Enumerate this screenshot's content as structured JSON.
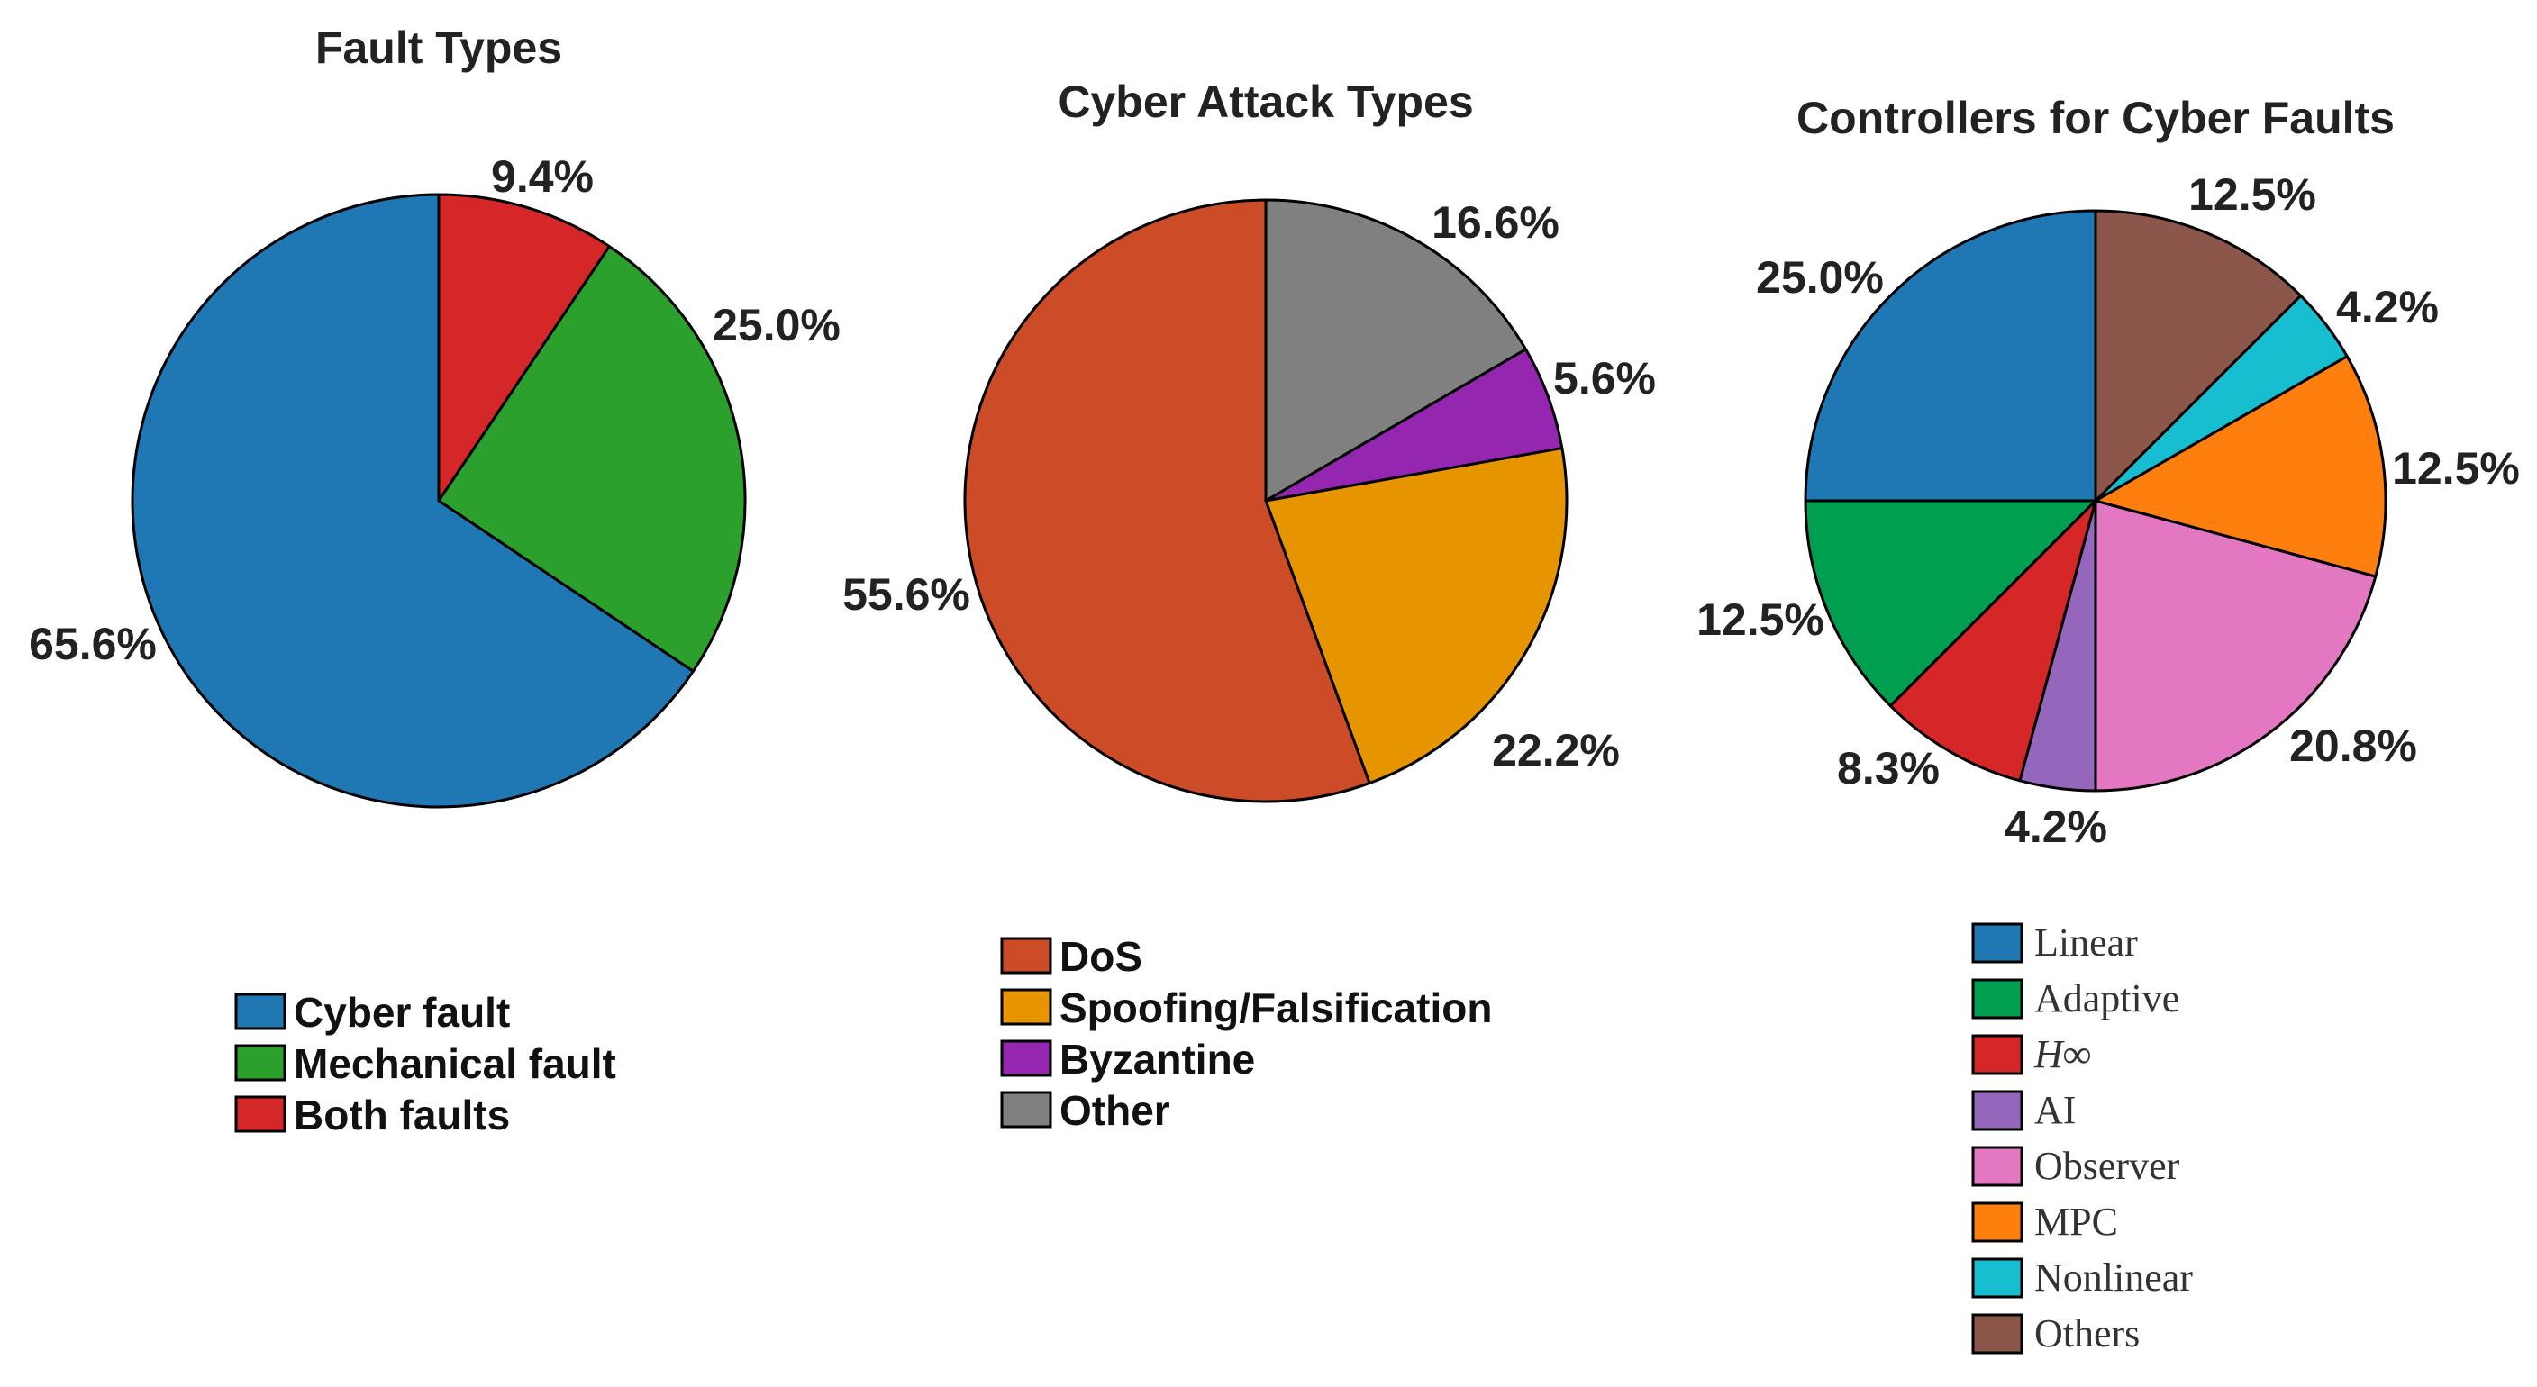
{
  "chart_data": [
    {
      "type": "pie",
      "title": "Fault Types",
      "slices": [
        {
          "label": "Cyber fault",
          "value": 65.6,
          "value_label": "65.6%",
          "color": "#1f77b4"
        },
        {
          "label": "Mechanical fault",
          "value": 25.0,
          "value_label": "25.0%",
          "color": "#2ca02c"
        },
        {
          "label": "Both faults",
          "value": 9.4,
          "value_label": "9.4%",
          "color": "#d62728"
        }
      ],
      "start": "top",
      "direction": "clockwise, last slice first",
      "legend_position": "below"
    },
    {
      "type": "pie",
      "title": "Cyber Attack Types",
      "slices": [
        {
          "label": "DoS",
          "value": 55.6,
          "value_label": "55.6%",
          "color": "#cc4c27"
        },
        {
          "label": "Spoofing/Falsification",
          "value": 22.2,
          "value_label": "22.2%",
          "color": "#e69500"
        },
        {
          "label": "Byzantine",
          "value": 5.6,
          "value_label": "5.6%",
          "color": "#9526b0"
        },
        {
          "label": "Other",
          "value": 16.6,
          "value_label": "16.6%",
          "color": "#808080"
        }
      ],
      "start": "top",
      "direction": "clockwise, last slice first",
      "legend_position": "below"
    },
    {
      "type": "pie",
      "title": "Controllers for Cyber Faults",
      "slices": [
        {
          "label": "Linear",
          "value": 25.0,
          "value_label": "25.0%",
          "color": "#1f77b4"
        },
        {
          "label": "Adaptive",
          "value": 12.5,
          "value_label": "12.5%",
          "color": "#009e4f"
        },
        {
          "label": "H∞",
          "value": 8.3,
          "value_label": "8.3%",
          "color": "#d62728"
        },
        {
          "label": "AI",
          "value": 4.2,
          "value_label": "4.2%",
          "color": "#9467bd"
        },
        {
          "label": "Observer",
          "value": 20.8,
          "value_label": "20.8%",
          "color": "#e377c2"
        },
        {
          "label": "MPC",
          "value": 12.5,
          "value_label": "12.5%",
          "color": "#ff7f0e"
        },
        {
          "label": "Nonlinear",
          "value": 4.2,
          "value_label": "4.2%",
          "color": "#17becf"
        },
        {
          "label": "Others",
          "value": 12.5,
          "value_label": "12.5%",
          "color": "#8c564b"
        }
      ],
      "start": "top",
      "direction": "counter-clockwise",
      "legend_position": "below"
    }
  ]
}
